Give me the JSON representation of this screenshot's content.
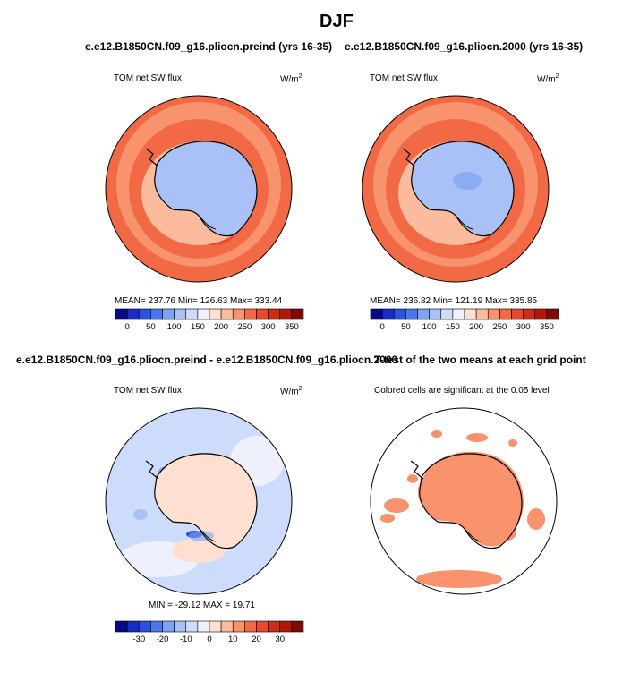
{
  "figure": {
    "title": "DJF",
    "season": "DJF",
    "left_run_title": "e.e12.B1850CN.f09_g16.pliocn.preind (yrs 16-35)",
    "right_run_title": "e.e12.B1850CN.f09_g16.pliocn.2000 (yrs 16-35)",
    "diff_title": "e.e12.B1850CN.f09_g16.pliocn.preind - e.e12.B1850CN.f09_g16.pliocn.2000",
    "ttest_title": "T-test of the two means at each grid point"
  },
  "panels": {
    "preind": {
      "variable": "TOM net SW flux",
      "units": "W/m",
      "units_exp": "2",
      "stats": "MEAN= 237.76   Min= 126.63   Max= 333.44"
    },
    "pd2000": {
      "variable": "TOM net SW flux",
      "units": "W/m",
      "units_exp": "2",
      "stats": "MEAN= 236.82   Min= 121.19   Max= 335.85"
    },
    "diff": {
      "variable": "TOM net SW flux",
      "units": "W/m",
      "units_exp": "2",
      "stats": "MIN = -29.12  MAX =   19.71"
    },
    "ttest": {
      "note": "Colored cells are significant at the 0.05 level"
    }
  },
  "colorbars": {
    "abs_labels": [
      "0",
      "50",
      "100",
      "150",
      "200",
      "250",
      "300",
      "350"
    ],
    "diff_labels": [
      "-30",
      "-20",
      "-10",
      "0",
      "10",
      "20",
      "30"
    ],
    "abs_colors": [
      "#08088a",
      "#1a2bc8",
      "#2a52e0",
      "#4a78ec",
      "#7fa2f2",
      "#a9c1f6",
      "#cddcfa",
      "#eef1fb",
      "#fde0cf",
      "#fbbb9c",
      "#f8936e",
      "#f26a45",
      "#e9482a",
      "#d02c15",
      "#ae190a",
      "#7d0a05"
    ],
    "diff_colors": [
      "#08088a",
      "#1a2bc8",
      "#2a52e0",
      "#4a78ec",
      "#7fa2f2",
      "#a9c1f6",
      "#cddcfa",
      "#eef1fb",
      "#fde0cf",
      "#fbbb9c",
      "#f8936e",
      "#f26a45",
      "#e9482a",
      "#d02c15",
      "#ae190a",
      "#7d0a05"
    ]
  }
}
